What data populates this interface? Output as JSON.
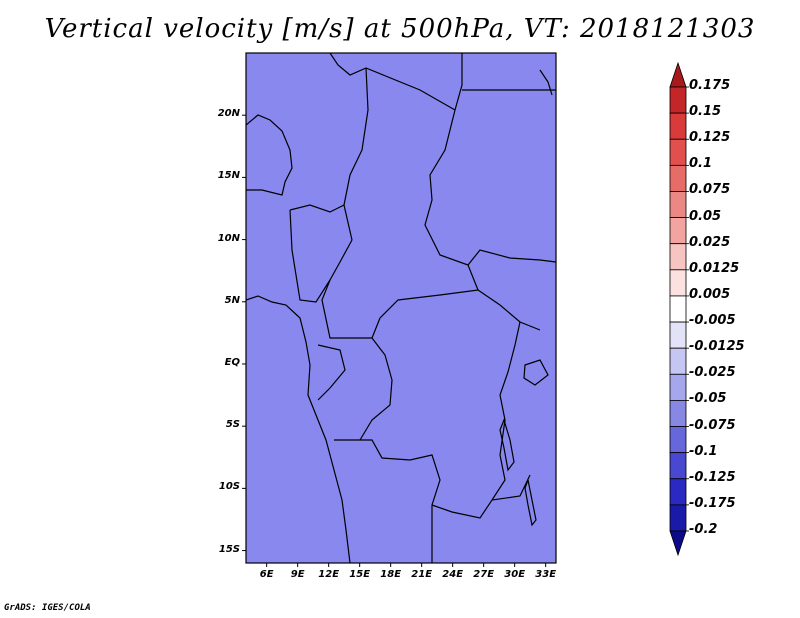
{
  "title": "Vertical velocity [m/s] at 500hPa, VT: 2018121303",
  "credit": "GrADS: IGES/COLA",
  "map": {
    "variable": "vertical velocity",
    "level_hpa": 500,
    "units": "m/s",
    "lon_range": [
      4,
      34
    ],
    "lat_range": [
      -16,
      25
    ],
    "lat_ticks": [
      {
        "value": 20,
        "label": "20N"
      },
      {
        "value": 15,
        "label": "15N"
      },
      {
        "value": 10,
        "label": "10N"
      },
      {
        "value": 5,
        "label": "5N"
      },
      {
        "value": 0,
        "label": "EQ"
      },
      {
        "value": -5,
        "label": "5S"
      },
      {
        "value": -10,
        "label": "10S"
      },
      {
        "value": -15,
        "label": "15S"
      }
    ],
    "lon_ticks": [
      {
        "value": 6,
        "label": "6E"
      },
      {
        "value": 9,
        "label": "9E"
      },
      {
        "value": 12,
        "label": "12E"
      },
      {
        "value": 15,
        "label": "15E"
      },
      {
        "value": 18,
        "label": "18E"
      },
      {
        "value": 21,
        "label": "21E"
      },
      {
        "value": 24,
        "label": "24E"
      },
      {
        "value": 27,
        "label": "27E"
      },
      {
        "value": 30,
        "label": "30E"
      },
      {
        "value": 33,
        "label": "33E"
      }
    ]
  },
  "colorbar": {
    "labels": [
      "0.175",
      "0.15",
      "0.125",
      "0.1",
      "0.075",
      "0.05",
      "0.025",
      "0.0125",
      "0.005",
      "-0.005",
      "-0.0125",
      "-0.025",
      "-0.05",
      "-0.075",
      "-0.1",
      "-0.125",
      "-0.175",
      "-0.2"
    ],
    "colors": [
      "#a8191e",
      "#c32528",
      "#d93a3a",
      "#e2504e",
      "#e76c68",
      "#ec8884",
      "#f1a4a0",
      "#f6c4c1",
      "#fbe2e0",
      "#ffffff",
      "#e3e3f8",
      "#c6c6f2",
      "#a6a6ec",
      "#8787e4",
      "#6767dc",
      "#4848d1",
      "#2a2ac2",
      "#1a1aa8",
      "#0b0b8a"
    ],
    "top_arrow_color": "#a8191e",
    "bottom_arrow_color": "#0b0b8a"
  }
}
